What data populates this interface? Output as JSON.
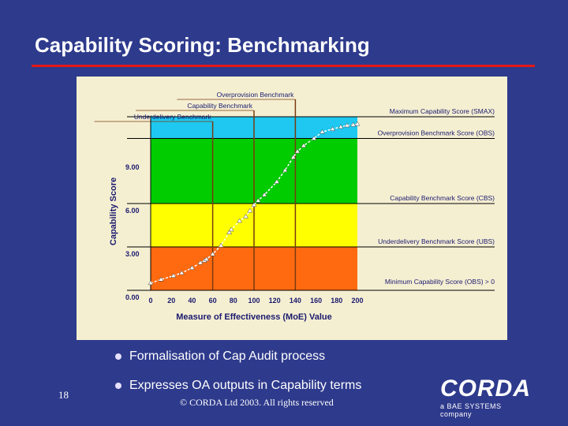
{
  "slide": {
    "title": "Capability Scoring: Benchmarking",
    "bullets": [
      "Formalisation of Cap Audit process",
      "Expresses OA outputs in Capability terms"
    ],
    "page_number": "18",
    "copyright": "© CORDA Ltd 2003. All rights reserved",
    "logo": {
      "name": "CORDA",
      "tagline": "a BAE SYSTEMS company"
    },
    "colors": {
      "background": "#2e3a8c",
      "rule": "#e31919",
      "panel": "#f5efd2"
    }
  },
  "chart_data": {
    "type": "line",
    "title": "",
    "xlabel": "Measure of Effectiveness (MoE) Value",
    "ylabel": "Capability Score",
    "xlim": [
      0,
      200
    ],
    "ylim": [
      0,
      12
    ],
    "x_ticks": [
      0,
      20,
      40,
      60,
      80,
      100,
      120,
      140,
      160,
      180,
      200
    ],
    "x_tick_labels": [
      "0",
      "20",
      "40",
      "60",
      "80",
      "100",
      "120",
      "140",
      "160",
      "180",
      "200"
    ],
    "y_ticks": [
      0,
      3,
      6,
      9
    ],
    "y_tick_labels": [
      "0.00",
      "3.00",
      "6.00",
      "9.00"
    ],
    "bands": [
      {
        "from": 0,
        "to": 3,
        "color": "#ff6a10"
      },
      {
        "from": 3,
        "to": 6,
        "color": "#ffff00"
      },
      {
        "from": 6,
        "to": 9,
        "color": "#00cc00"
      },
      {
        "from": 9,
        "to": 10.5,
        "color": "#00cc00"
      },
      {
        "from": 10.5,
        "to": 12,
        "color": "#1ec8f0"
      }
    ],
    "series": [
      {
        "color": "#ffffff",
        "x": [
          0,
          10,
          22,
          30,
          40,
          48,
          52,
          54,
          60,
          68,
          76,
          78,
          86,
          92,
          96,
          100,
          104,
          110,
          122,
          130,
          138,
          142,
          148,
          158,
          166,
          176,
          184,
          190,
          196,
          200
        ],
        "y": [
          0.5,
          0.75,
          1.0,
          1.2,
          1.55,
          1.9,
          2.05,
          2.15,
          2.5,
          3.1,
          4.0,
          4.2,
          4.8,
          5.1,
          5.5,
          5.9,
          6.2,
          6.6,
          7.5,
          8.3,
          9.2,
          9.6,
          10.0,
          10.5,
          10.95,
          11.15,
          11.3,
          11.4,
          11.45,
          11.5
        ]
      }
    ],
    "vertical_benchmarks": [
      {
        "label": "Underdelivery Benchmark",
        "x": 60
      },
      {
        "label": "Capability Benchmark",
        "x": 100
      },
      {
        "label": "Overprovision Benchmark",
        "x": 140
      }
    ],
    "horizontal_benchmarks": [
      {
        "label": "Maximum Capability Score (SMAX)",
        "y": 12
      },
      {
        "label": "Overprovision Benchmark Score (OBS)",
        "y": 10.5
      },
      {
        "label": "Capability Benchmark Score (CBS)",
        "y": 6
      },
      {
        "label": "Underdelivery Benchmark Score (UBS)",
        "y": 3
      },
      {
        "label": "Minimum Capability Score (OBS) > 0",
        "y": 0
      }
    ],
    "grid": false,
    "legend": "none"
  }
}
